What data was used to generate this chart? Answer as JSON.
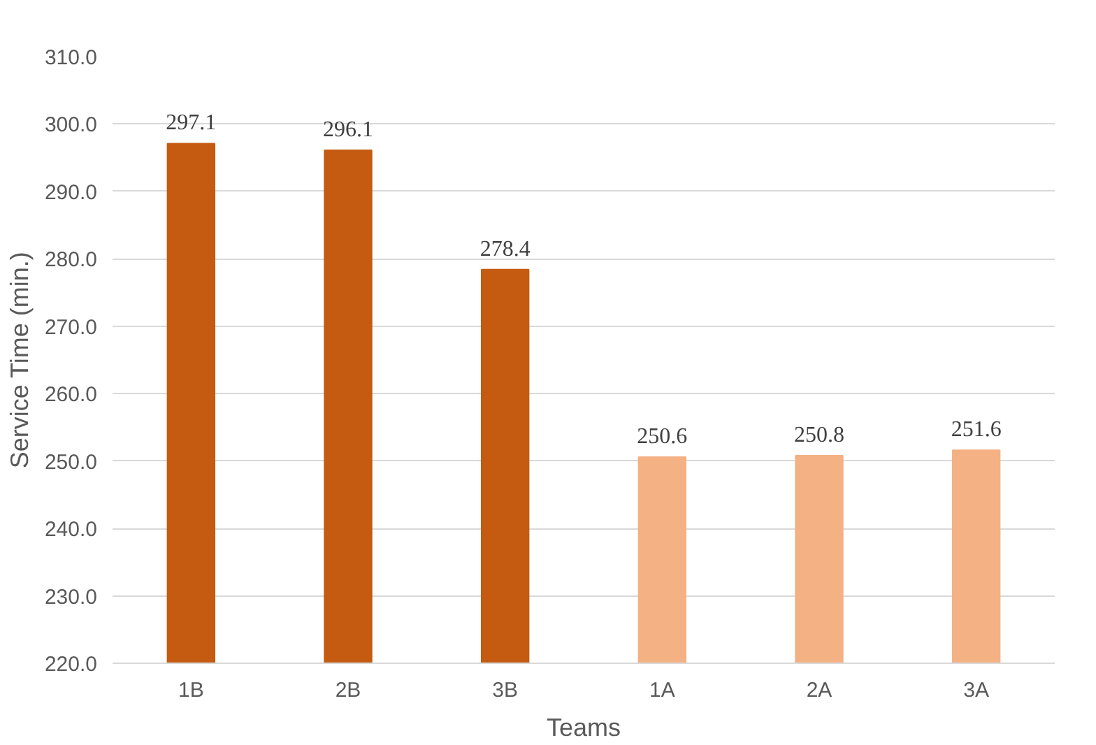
{
  "chart_data": {
    "type": "bar",
    "xlabel": "Teams",
    "ylabel": "Service Time (min.)",
    "categories": [
      "1B",
      "2B",
      "3B",
      "1A",
      "2A",
      "3A"
    ],
    "values": [
      297.1,
      296.1,
      278.4,
      250.6,
      250.8,
      251.6
    ],
    "colors": [
      "#c55a11",
      "#c55a11",
      "#c55a11",
      "#f4b183",
      "#f4b183",
      "#f4b183"
    ],
    "ylim": [
      220,
      310
    ],
    "yticks": [
      {
        "value": 220,
        "label": "220.0"
      },
      {
        "value": 230,
        "label": "230.0"
      },
      {
        "value": 240,
        "label": "240.0"
      },
      {
        "value": 250,
        "label": "250.0"
      },
      {
        "value": 260,
        "label": "260.0"
      },
      {
        "value": 270,
        "label": "270.0"
      },
      {
        "value": 280,
        "label": "280.0"
      },
      {
        "value": 290,
        "label": "290.0"
      },
      {
        "value": 300,
        "label": "300.0"
      },
      {
        "value": 310,
        "label": "310.0"
      }
    ],
    "grid": "y",
    "data_labels": true
  }
}
